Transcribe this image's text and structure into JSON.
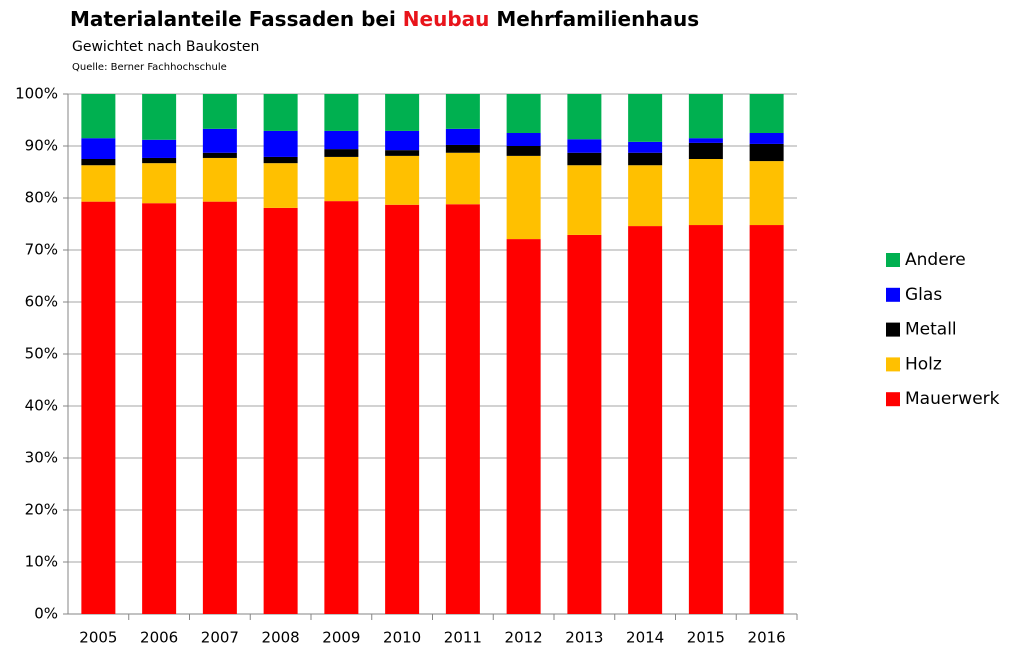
{
  "chart_data": {
    "type": "stacked_bar",
    "title": [
      "Materialanteile Fassaden bei",
      "Neubau",
      "Mehrfamilienhaus"
    ],
    "title_highlight_color": "#e8141b",
    "subtitle": "Gewichtet nach Baukosten",
    "source": "Quelle: Berner Fachhochschule",
    "categories": [
      "2005",
      "2006",
      "2007",
      "2008",
      "2009",
      "2010",
      "2011",
      "2012",
      "2013",
      "2014",
      "2015",
      "2016"
    ],
    "series": [
      {
        "name": "Mauerwerk",
        "color": "#ff0000",
        "values": [
          79.3,
          79.0,
          79.3,
          78.1,
          79.4,
          78.7,
          78.8,
          72.1,
          72.9,
          74.6,
          74.8,
          74.8
        ]
      },
      {
        "name": "Holz",
        "color": "#ffc000",
        "values": [
          7.0,
          7.7,
          8.4,
          8.6,
          8.5,
          9.4,
          9.9,
          16.0,
          13.4,
          11.7,
          12.7,
          12.3
        ]
      },
      {
        "name": "Metall",
        "color": "#000000",
        "values": [
          1.2,
          1.0,
          1.0,
          1.2,
          1.5,
          1.1,
          1.5,
          1.9,
          2.4,
          2.4,
          3.1,
          3.3
        ]
      },
      {
        "name": "Glas",
        "color": "#0000ff",
        "values": [
          4.0,
          3.5,
          4.6,
          5.0,
          3.5,
          3.7,
          3.1,
          2.5,
          2.6,
          2.1,
          0.9,
          2.1
        ]
      },
      {
        "name": "Andere",
        "color": "#00b050",
        "values": [
          8.5,
          8.8,
          6.7,
          7.1,
          7.1,
          7.1,
          6.7,
          7.5,
          8.7,
          9.2,
          8.5,
          7.5
        ]
      }
    ],
    "ylim": [
      0,
      100
    ],
    "yticks": [
      {
        "value": 0,
        "label": "0%"
      },
      {
        "value": 10,
        "label": "10%"
      },
      {
        "value": 20,
        "label": "20%"
      },
      {
        "value": 30,
        "label": "30%"
      },
      {
        "value": 40,
        "label": "40%"
      },
      {
        "value": 50,
        "label": "50%"
      },
      {
        "value": 60,
        "label": "60%"
      },
      {
        "value": 70,
        "label": "70%"
      },
      {
        "value": 80,
        "label": "80%"
      },
      {
        "value": 90,
        "label": "90%"
      },
      {
        "value": 100,
        "label": "100%"
      }
    ],
    "grid": true,
    "legend": "right"
  }
}
